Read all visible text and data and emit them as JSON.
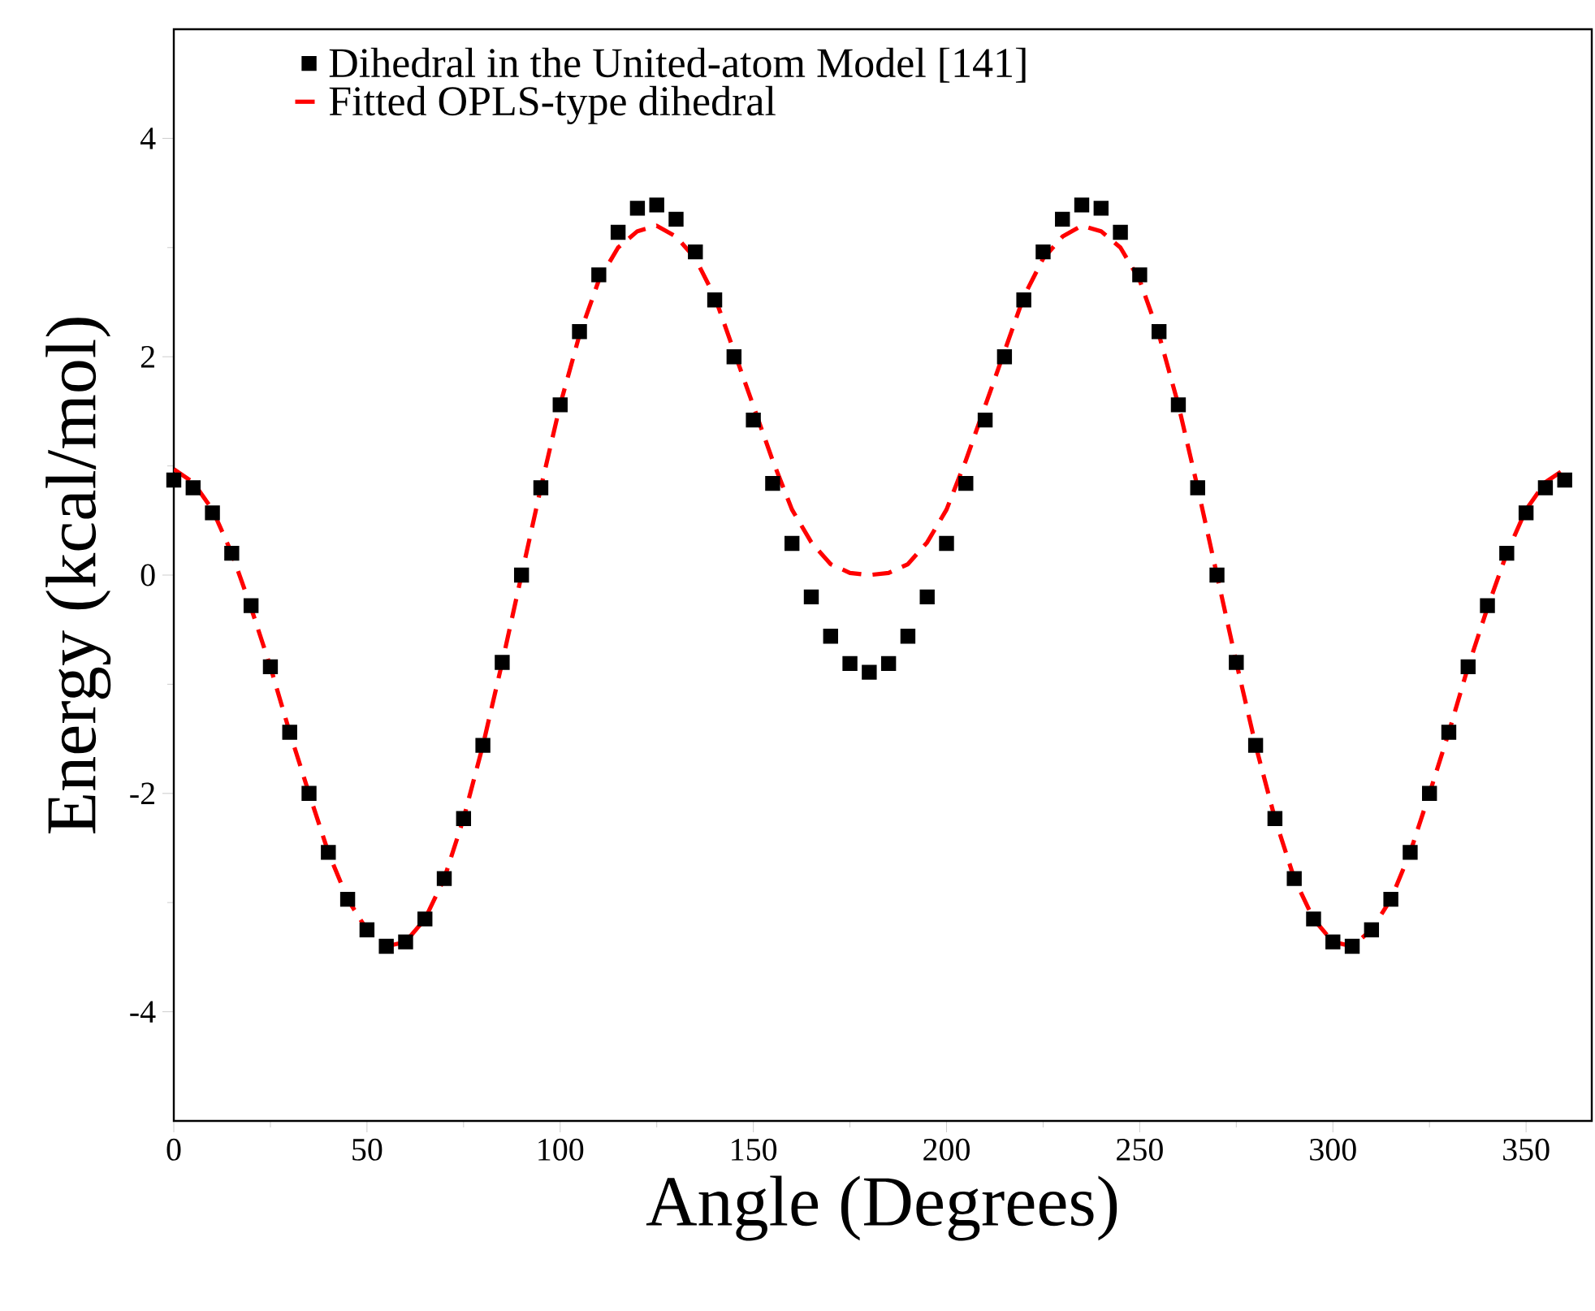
{
  "chart_data": {
    "type": "scatter",
    "xlabel": "Angle (Degrees)",
    "ylabel": "Energy (kcal/mol)",
    "x": [
      0,
      5,
      10,
      15,
      20,
      25,
      30,
      35,
      40,
      45,
      50,
      55,
      60,
      65,
      70,
      75,
      80,
      85,
      90,
      95,
      100,
      105,
      110,
      115,
      120,
      125,
      130,
      135,
      140,
      145,
      150,
      155,
      160,
      165,
      170,
      175,
      180,
      185,
      190,
      195,
      200,
      205,
      210,
      215,
      220,
      225,
      230,
      235,
      240,
      245,
      250,
      255,
      260,
      265,
      270,
      275,
      280,
      285,
      290,
      295,
      300,
      305,
      310,
      315,
      320,
      325,
      330,
      335,
      340,
      345,
      350,
      355,
      360
    ],
    "series": [
      {
        "name": "Dihedral in the United-atom Model [141]",
        "marker": "square",
        "color": "#000000",
        "values": [
          0.87,
          0.8,
          0.57,
          0.2,
          -0.28,
          -0.84,
          -1.44,
          -2.0,
          -2.54,
          -2.97,
          -3.25,
          -3.4,
          -3.36,
          -3.15,
          -2.78,
          -2.23,
          -1.56,
          -0.8,
          0.0,
          0.8,
          1.56,
          2.23,
          2.75,
          3.14,
          3.36,
          3.39,
          3.26,
          2.96,
          2.52,
          2.0,
          1.42,
          0.84,
          0.29,
          -0.2,
          -0.56,
          -0.81,
          -0.89,
          -0.81,
          -0.56,
          -0.2,
          0.29,
          0.84,
          1.42,
          2.0,
          2.52,
          2.96,
          3.26,
          3.39,
          3.36,
          3.14,
          2.75,
          2.23,
          1.56,
          0.8,
          0.0,
          -0.8,
          -1.56,
          -2.23,
          -2.78,
          -3.15,
          -3.36,
          -3.4,
          -3.25,
          -2.97,
          -2.54,
          -2.0,
          -1.44,
          -0.84,
          -0.28,
          0.2,
          0.57,
          0.8,
          0.87
        ]
      },
      {
        "name": "Fitted OPLS-type dihedral",
        "type": "line",
        "line_style": "dashed",
        "color": "#ff0000",
        "values": [
          0.97,
          0.85,
          0.6,
          0.2,
          -0.3,
          -0.84,
          -1.44,
          -2.0,
          -2.54,
          -2.97,
          -3.25,
          -3.4,
          -3.36,
          -3.15,
          -2.78,
          -2.23,
          -1.56,
          -0.8,
          0.0,
          0.8,
          1.56,
          2.2,
          2.7,
          3.0,
          3.15,
          3.2,
          3.1,
          2.9,
          2.55,
          2.05,
          1.55,
          1.05,
          0.6,
          0.3,
          0.1,
          0.02,
          0.0,
          0.02,
          0.1,
          0.3,
          0.6,
          1.05,
          1.55,
          2.05,
          2.55,
          2.9,
          3.1,
          3.2,
          3.15,
          3.0,
          2.7,
          2.2,
          1.56,
          0.8,
          0.0,
          -0.8,
          -1.56,
          -2.23,
          -2.78,
          -3.15,
          -3.36,
          -3.4,
          -3.25,
          -2.97,
          -2.54,
          -2.0,
          -1.44,
          -0.84,
          -0.3,
          0.2,
          0.6,
          0.85,
          0.97
        ]
      }
    ],
    "xlim": [
      0,
      367
    ],
    "ylim": [
      -5,
      5
    ],
    "xticks": [
      0,
      50,
      100,
      150,
      200,
      250,
      300,
      350
    ],
    "yticks": [
      -4,
      -2,
      0,
      2,
      4
    ],
    "legend": "top left"
  }
}
